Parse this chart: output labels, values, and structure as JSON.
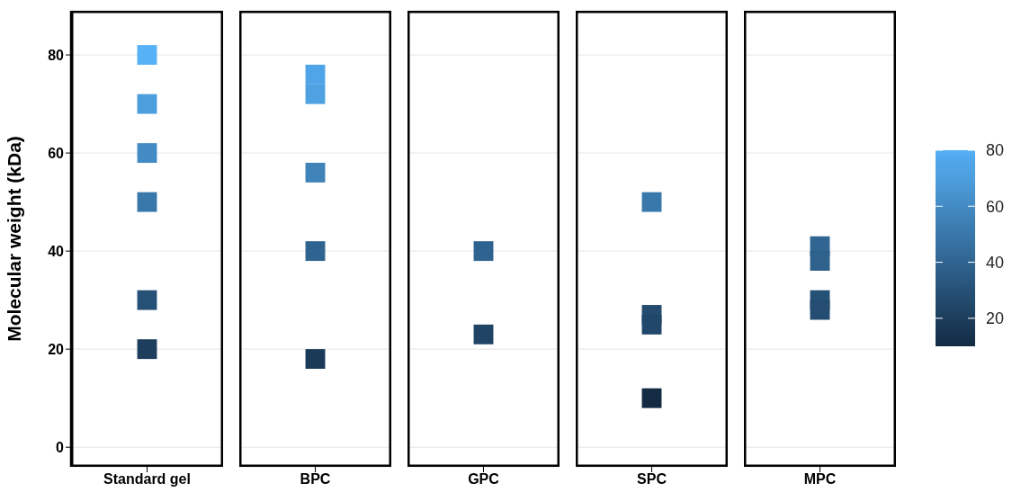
{
  "chart_data": {
    "type": "scatter",
    "ylabel": "Molecular weight (kDa)",
    "categories": [
      "Standard gel",
      "BPC",
      "GPC",
      "SPC",
      "MPC"
    ],
    "series": [
      {
        "x": [
          "Standard gel",
          "Standard gel",
          "Standard gel",
          "Standard gel",
          "Standard gel",
          "Standard gel",
          "BPC",
          "BPC",
          "BPC",
          "BPC",
          "BPC",
          "GPC",
          "GPC",
          "SPC",
          "SPC",
          "SPC",
          "SPC",
          "MPC",
          "MPC",
          "MPC",
          "MPC"
        ],
        "values": [
          80,
          70,
          60,
          50,
          30,
          20,
          76,
          72,
          56,
          40,
          18,
          40,
          23,
          50,
          27,
          25,
          10,
          41,
          38,
          30,
          28
        ],
        "cvalues": [
          80,
          70,
          60,
          50,
          30,
          20,
          76,
          72,
          56,
          40,
          18,
          40,
          23,
          50,
          27,
          25,
          10,
          41,
          38,
          30,
          28
        ],
        "colors": [
          "#56b1f7",
          "#4c9edd",
          "#438bc4",
          "#3978aa",
          "#265176",
          "#1d3e5d",
          "#50a5e8",
          "#4ea2e2",
          "#3f83b9",
          "#306490",
          "#1b3a58",
          "#306490",
          "#1f4464",
          "#3978aa",
          "#234c6f",
          "#21486a",
          "#132b43",
          "#316693",
          "#2e618b",
          "#265176",
          "#244d71"
        ]
      }
    ],
    "ylim": [
      -4,
      89
    ],
    "yticks": [
      0,
      20,
      40,
      60,
      80
    ],
    "grid": "y",
    "marker": "square",
    "clim": [
      10,
      80
    ],
    "cticks": [
      20,
      40,
      60,
      80
    ]
  }
}
